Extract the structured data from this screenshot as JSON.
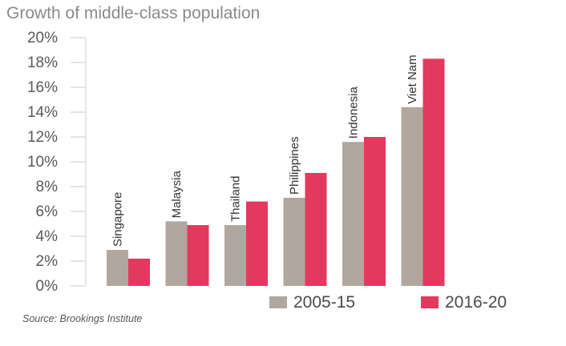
{
  "chart_data": {
    "type": "bar",
    "title": "Growth of middle-class population",
    "categories": [
      "Singapore",
      "Malaysia",
      "Thailand",
      "Philippines",
      "Indonesia",
      "Viet Nam"
    ],
    "series": [
      {
        "name": "2005-15",
        "color": "#b1a79f",
        "values": [
          2.9,
          5.2,
          4.9,
          7.1,
          11.6,
          14.4
        ]
      },
      {
        "name": "2016-20",
        "color": "#e3395e",
        "values": [
          2.2,
          4.9,
          6.8,
          9.1,
          12.0,
          18.3
        ]
      }
    ],
    "ylim": [
      0,
      20
    ],
    "yticks": [
      "0%",
      "2%",
      "4%",
      "6%",
      "8%",
      "10%",
      "12%",
      "14%",
      "16%",
      "18%",
      "20%"
    ],
    "xlabel": "",
    "ylabel": "",
    "grid": false,
    "legend": "bottom-right",
    "source": "Source: Brookings Institute"
  }
}
